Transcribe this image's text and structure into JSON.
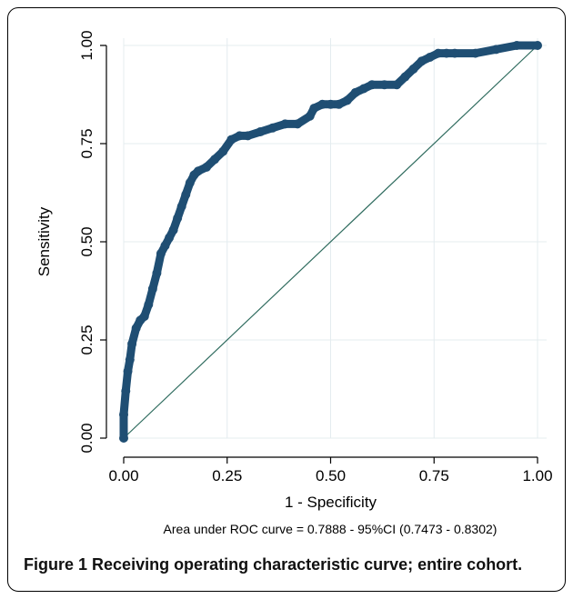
{
  "chart_data": {
    "type": "line",
    "xlabel": "1 - Specificity",
    "ylabel": "Sensitivity",
    "xlim": [
      0,
      1
    ],
    "ylim": [
      0,
      1
    ],
    "xticks": [
      "0.00",
      "0.25",
      "0.50",
      "0.75",
      "1.00"
    ],
    "yticks": [
      "0.00",
      "0.25",
      "0.50",
      "0.75",
      "1.00"
    ],
    "grid": true,
    "note": "Area under ROC curve = 0.7888 - 95%CI (0.7473 - 0.8302)",
    "series": [
      {
        "values_x": [
          0,
          0,
          0.005,
          0.01,
          0.015,
          0.02,
          0.03,
          0.04,
          0.05,
          0.06,
          0.07,
          0.08,
          0.09,
          0.1,
          0.11,
          0.12,
          0.13,
          0.14,
          0.15,
          0.16,
          0.17,
          0.18,
          0.2,
          0.22,
          0.24,
          0.26,
          0.28,
          0.3,
          0.33,
          0.36,
          0.39,
          0.42,
          0.45,
          0.46,
          0.48,
          0.5,
          0.52,
          0.54,
          0.56,
          0.58,
          0.6,
          0.63,
          0.66,
          0.68,
          0.7,
          0.72,
          0.74,
          0.76,
          0.78,
          0.8,
          0.85,
          0.9,
          0.95,
          1.0
        ],
        "values_y": [
          0,
          0.06,
          0.12,
          0.17,
          0.2,
          0.24,
          0.28,
          0.3,
          0.31,
          0.34,
          0.38,
          0.42,
          0.47,
          0.49,
          0.51,
          0.53,
          0.56,
          0.59,
          0.62,
          0.65,
          0.67,
          0.68,
          0.69,
          0.71,
          0.73,
          0.76,
          0.77,
          0.77,
          0.78,
          0.79,
          0.8,
          0.8,
          0.82,
          0.84,
          0.85,
          0.85,
          0.85,
          0.86,
          0.88,
          0.89,
          0.9,
          0.9,
          0.9,
          0.92,
          0.94,
          0.96,
          0.97,
          0.98,
          0.98,
          0.98,
          0.98,
          0.99,
          1.0,
          1.0
        ],
        "color": "#1f4e73"
      }
    ],
    "reference_line": {
      "x": [
        0,
        1
      ],
      "y": [
        0,
        1
      ],
      "color": "#2e6b5e"
    }
  },
  "caption": {
    "label": "Figure 1",
    "text": "Receiving operating characteristic curve; entire cohort."
  }
}
